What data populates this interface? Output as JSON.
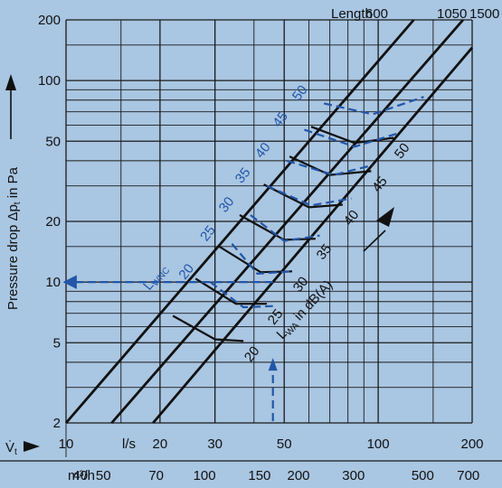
{
  "chart_data": {
    "type": "line",
    "title": "Length",
    "lengths": [
      "600",
      "1050",
      "1500"
    ],
    "ylabel": "Pressure drop Δp",
    "ylabel_sub": "t",
    "ylabel_unit": " in Pa",
    "ylim": [
      2,
      200
    ],
    "y_scale": "log",
    "y_ticks": [
      2,
      5,
      10,
      20,
      50,
      100,
      200
    ],
    "x_scale": "log",
    "x_axis_ls": {
      "label": "V̇",
      "sub": "t",
      "unit": "l/s",
      "range": [
        10,
        200
      ],
      "ticks": [
        10,
        20,
        30,
        50,
        100,
        200
      ]
    },
    "x_axis_m3h": {
      "unit": "m³/h",
      "ticks": [
        40,
        50,
        70,
        100,
        150,
        200,
        300,
        500,
        700
      ]
    },
    "lwa_label": "L",
    "lwa_sub": "WA",
    "lwa_unit": " in dB(A)",
    "lwnc_label": "L",
    "lwnc_sub": "WNC",
    "black_curve_labels": [
      "20",
      "25",
      "30",
      "35",
      "40",
      "45",
      "50"
    ],
    "blue_curve_labels": [
      "20",
      "25",
      "30",
      "35",
      "40",
      "45",
      "50"
    ],
    "length_lines": [
      {
        "name": "600",
        "points": [
          [
            10,
            2
          ],
          [
            130,
            200
          ]
        ]
      },
      {
        "name": "1050",
        "points": [
          [
            14,
            2
          ],
          [
            187,
            200
          ]
        ]
      },
      {
        "name": "1500",
        "points": [
          [
            19,
            2
          ],
          [
            238,
            200
          ]
        ]
      }
    ],
    "series": [
      {
        "name": "20",
        "color": "#111111",
        "points": [
          [
            22,
            6.8
          ],
          [
            30,
            5.2
          ],
          [
            37,
            5.1
          ]
        ]
      },
      {
        "name": "25",
        "color": "#111111",
        "points": [
          [
            26,
            10.4
          ],
          [
            35,
            7.8
          ],
          [
            44,
            7.8
          ]
        ]
      },
      {
        "name": "30",
        "color": "#111111",
        "points": [
          [
            31,
            15
          ],
          [
            42,
            11.2
          ],
          [
            53,
            11.3
          ]
        ]
      },
      {
        "name": "35",
        "color": "#111111",
        "points": [
          [
            36,
            21.5
          ],
          [
            50,
            16.2
          ],
          [
            63,
            16.4
          ]
        ]
      },
      {
        "name": "40",
        "color": "#111111",
        "points": [
          [
            43,
            30.5
          ],
          [
            60,
            23.5
          ],
          [
            77,
            24.2
          ]
        ]
      },
      {
        "name": "45",
        "color": "#111111",
        "points": [
          [
            52,
            42
          ],
          [
            70,
            34
          ],
          [
            95,
            35.5
          ]
        ]
      },
      {
        "name": "50",
        "color": "#111111",
        "points": [
          [
            61,
            59
          ],
          [
            84,
            49
          ],
          [
            112,
            52
          ]
        ]
      },
      {
        "name": "20",
        "color": "#2356a8",
        "points": [
          [
            29,
            10
          ],
          [
            37,
            7.5
          ],
          [
            46,
            7.6
          ]
        ]
      },
      {
        "name": "25",
        "color": "#2356a8",
        "points": [
          [
            34,
            15.5
          ],
          [
            41,
            11
          ],
          [
            53,
            11.3
          ]
        ]
      },
      {
        "name": "30",
        "color": "#2356a8",
        "points": [
          [
            39,
            21.5
          ],
          [
            50,
            16
          ],
          [
            65,
            17
          ]
        ]
      },
      {
        "name": "35",
        "color": "#2356a8",
        "points": [
          [
            44,
            30
          ],
          [
            61,
            24
          ],
          [
            82,
            26
          ]
        ]
      },
      {
        "name": "40",
        "color": "#2356a8",
        "points": [
          [
            51,
            40
          ],
          [
            72,
            34
          ],
          [
            96,
            38
          ]
        ]
      },
      {
        "name": "45",
        "color": "#2356a8",
        "points": [
          [
            58,
            57
          ],
          [
            84,
            47
          ],
          [
            117,
            55
          ]
        ]
      },
      {
        "name": "50",
        "color": "#2356a8",
        "points": [
          [
            67,
            77
          ],
          [
            96,
            68
          ],
          [
            140,
            83
          ]
        ]
      }
    ],
    "reading_example": {
      "flow_ls": 46,
      "pressure_pa": 10
    }
  }
}
